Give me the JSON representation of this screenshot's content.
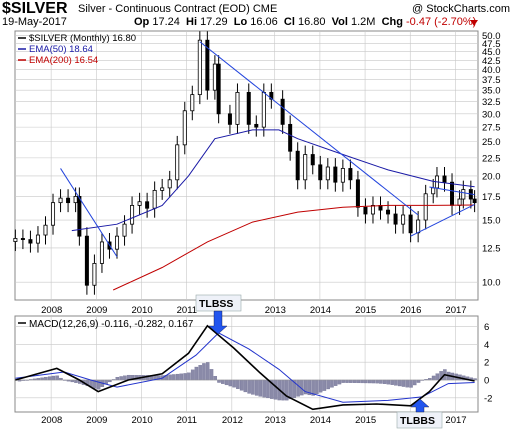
{
  "header": {
    "symbol": "$SILVER",
    "description": "Silver - Continuous Contract (EOD)",
    "exchange": "CME",
    "copyright": "@ StockCharts.com",
    "date": "19-May-2017",
    "open_label": "Op",
    "open": "17.24",
    "high_label": "Hi",
    "high": "17.29",
    "low_label": "Lo",
    "low": "16.06",
    "close_label": "Cl",
    "close": "16.80",
    "volume_label": "Vol",
    "volume": "1.2M",
    "change_label": "Chg",
    "change": "-0.47 (-2.70%)"
  },
  "legend": {
    "price": "$SILVER (Monthly) 16.80",
    "ema50": "EMA(50) 18.64",
    "ema200": "EMA(200) 16.54"
  },
  "macd_label": "MACD(12,26,9) -0.116, -0.282, 0.167",
  "annotations": {
    "top": "TLBSS",
    "bottom": "TLBBS"
  },
  "colors": {
    "candle": "#000000",
    "ema50": "#1a1aa6",
    "ema200": "#c00000",
    "trendline": "#2244dd",
    "macd": "#000000",
    "signal": "#2233cc",
    "histogram": "#8a8aa8",
    "grid": "#c8c8c8",
    "arrow": "#2255ee"
  },
  "chart_data": [
    {
      "type": "candlestick",
      "title": "$SILVER (Monthly)",
      "y_scale": "log",
      "ylim": [
        9,
        51
      ],
      "y_ticks": [
        10.0,
        12.5,
        15.0,
        17.5,
        20.0,
        22.5,
        25.0,
        27.5,
        30.0,
        32.5,
        35.0,
        37.5,
        40.0,
        42.5,
        45.0,
        47.5,
        50.0
      ],
      "x_ticks": [
        "2008",
        "2009",
        "2010",
        "2011",
        "2013",
        "2014",
        "2015",
        "2016",
        "2017"
      ],
      "monthly_close": [
        {
          "date": "2007-03",
          "close": 13.3
        },
        {
          "date": "2007-05",
          "close": 13.2
        },
        {
          "date": "2007-07",
          "close": 12.9
        },
        {
          "date": "2007-09",
          "close": 13.6
        },
        {
          "date": "2007-11",
          "close": 14.5
        },
        {
          "date": "2008-01",
          "close": 16.8
        },
        {
          "date": "2008-03",
          "close": 17.3
        },
        {
          "date": "2008-05",
          "close": 16.8
        },
        {
          "date": "2008-07",
          "close": 17.5
        },
        {
          "date": "2008-08",
          "close": 13.5
        },
        {
          "date": "2008-10",
          "close": 9.8
        },
        {
          "date": "2008-12",
          "close": 11.3
        },
        {
          "date": "2009-02",
          "close": 13.0
        },
        {
          "date": "2009-04",
          "close": 12.4
        },
        {
          "date": "2009-06",
          "close": 13.5
        },
        {
          "date": "2009-08",
          "close": 14.6
        },
        {
          "date": "2009-10",
          "close": 16.5
        },
        {
          "date": "2009-12",
          "close": 16.9
        },
        {
          "date": "2010-02",
          "close": 16.2
        },
        {
          "date": "2010-04",
          "close": 18.2
        },
        {
          "date": "2010-06",
          "close": 18.5
        },
        {
          "date": "2010-08",
          "close": 19.5
        },
        {
          "date": "2010-10",
          "close": 24.5
        },
        {
          "date": "2010-12",
          "close": 30.6
        },
        {
          "date": "2011-02",
          "close": 34.0
        },
        {
          "date": "2011-04",
          "close": 48.5
        },
        {
          "date": "2011-06",
          "close": 35.0
        },
        {
          "date": "2011-08",
          "close": 41.5
        },
        {
          "date": "2011-09",
          "close": 30.0
        },
        {
          "date": "2011-12",
          "close": 28.0
        },
        {
          "date": "2012-02",
          "close": 34.5
        },
        {
          "date": "2012-05",
          "close": 28.0
        },
        {
          "date": "2012-07",
          "close": 27.5
        },
        {
          "date": "2012-09",
          "close": 34.5
        },
        {
          "date": "2012-11",
          "close": 33.0
        },
        {
          "date": "2013-02",
          "close": 28.0
        },
        {
          "date": "2013-04",
          "close": 23.5
        },
        {
          "date": "2013-06",
          "close": 19.5
        },
        {
          "date": "2013-08",
          "close": 23.0
        },
        {
          "date": "2013-10",
          "close": 21.5
        },
        {
          "date": "2013-12",
          "close": 19.5
        },
        {
          "date": "2014-02",
          "close": 21.2
        },
        {
          "date": "2014-04",
          "close": 19.2
        },
        {
          "date": "2014-06",
          "close": 21.0
        },
        {
          "date": "2014-08",
          "close": 19.5
        },
        {
          "date": "2014-10",
          "close": 16.3
        },
        {
          "date": "2014-12",
          "close": 15.6
        },
        {
          "date": "2015-02",
          "close": 16.5
        },
        {
          "date": "2015-04",
          "close": 16.0
        },
        {
          "date": "2015-06",
          "close": 15.6
        },
        {
          "date": "2015-08",
          "close": 14.6
        },
        {
          "date": "2015-10",
          "close": 15.5
        },
        {
          "date": "2015-12",
          "close": 13.8
        },
        {
          "date": "2016-02",
          "close": 15.0
        },
        {
          "date": "2016-04",
          "close": 17.8
        },
        {
          "date": "2016-06",
          "close": 18.5
        },
        {
          "date": "2016-07",
          "close": 20.0
        },
        {
          "date": "2016-09",
          "close": 19.2
        },
        {
          "date": "2016-11",
          "close": 16.5
        },
        {
          "date": "2017-01",
          "close": 17.2
        },
        {
          "date": "2017-02",
          "close": 18.3
        },
        {
          "date": "2017-04",
          "close": 17.2
        },
        {
          "date": "2017-05",
          "close": 16.8
        }
      ],
      "ema50": [
        {
          "date": "2008-06",
          "value": 14.0
        },
        {
          "date": "2009-06",
          "value": 14.6
        },
        {
          "date": "2010-06",
          "value": 16.5
        },
        {
          "date": "2011-01",
          "value": 20.0
        },
        {
          "date": "2011-08",
          "value": 25.5
        },
        {
          "date": "2012-06",
          "value": 27.0
        },
        {
          "date": "2013-01",
          "value": 27.0
        },
        {
          "date": "2013-06",
          "value": 25.5
        },
        {
          "date": "2014-06",
          "value": 23.0
        },
        {
          "date": "2015-06",
          "value": 20.8
        },
        {
          "date": "2016-06",
          "value": 19.3
        },
        {
          "date": "2017-05",
          "value": 18.64
        }
      ],
      "ema200": [
        {
          "date": "2009-05",
          "value": 9.5
        },
        {
          "date": "2010-06",
          "value": 11.0
        },
        {
          "date": "2011-06",
          "value": 13.0
        },
        {
          "date": "2012-06",
          "value": 14.8
        },
        {
          "date": "2013-06",
          "value": 15.8
        },
        {
          "date": "2014-06",
          "value": 16.3
        },
        {
          "date": "2015-06",
          "value": 16.5
        },
        {
          "date": "2016-06",
          "value": 16.5
        },
        {
          "date": "2017-05",
          "value": 16.54
        }
      ],
      "trendlines": [
        {
          "from": {
            "date": "2008-03",
            "value": 21.0
          },
          "to": {
            "date": "2009-06",
            "value": 11.8
          }
        },
        {
          "from": {
            "date": "2011-04",
            "value": 48.0
          },
          "to": {
            "date": "2016-02",
            "value": 15.5
          }
        },
        {
          "from": {
            "date": "2015-12",
            "value": 13.5
          },
          "to": {
            "date": "2017-05",
            "value": 16.6
          }
        },
        {
          "from": {
            "date": "2016-05",
            "value": 18.6
          },
          "to": {
            "date": "2017-05",
            "value": 17.7
          }
        }
      ]
    },
    {
      "type": "line",
      "title": "MACD(12,26,9) -0.116, -0.282, 0.167",
      "ylim": [
        -3.5,
        7
      ],
      "y_ticks": [
        6,
        4,
        2,
        0,
        -2
      ],
      "x_ticks": [
        "2008",
        "2009",
        "2010",
        "2011",
        "2012",
        "2013",
        "2014",
        "2015",
        "2016",
        "2017"
      ],
      "series": [
        {
          "name": "MACD",
          "points": [
            {
              "date": "2007-03",
              "value": 0.0
            },
            {
              "date": "2008-02",
              "value": 1.3
            },
            {
              "date": "2008-08",
              "value": 0.0
            },
            {
              "date": "2009-01",
              "value": -1.3
            },
            {
              "date": "2009-09",
              "value": 0.0
            },
            {
              "date": "2010-06",
              "value": 0.7
            },
            {
              "date": "2011-01",
              "value": 3.0
            },
            {
              "date": "2011-06",
              "value": 6.1
            },
            {
              "date": "2012-01",
              "value": 3.6
            },
            {
              "date": "2012-08",
              "value": 0.8
            },
            {
              "date": "2013-03",
              "value": -1.8
            },
            {
              "date": "2013-10",
              "value": -3.3
            },
            {
              "date": "2014-06",
              "value": -2.8
            },
            {
              "date": "2015-03",
              "value": -2.7
            },
            {
              "date": "2015-12",
              "value": -2.9
            },
            {
              "date": "2016-05",
              "value": -1.3
            },
            {
              "date": "2016-09",
              "value": 0.6
            },
            {
              "date": "2017-05",
              "value": -0.116
            }
          ]
        },
        {
          "name": "Signal",
          "points": [
            {
              "date": "2007-03",
              "value": 0.2
            },
            {
              "date": "2008-04",
              "value": 0.9
            },
            {
              "date": "2008-11",
              "value": 0.0
            },
            {
              "date": "2009-06",
              "value": -0.8
            },
            {
              "date": "2010-06",
              "value": 0.2
            },
            {
              "date": "2011-03",
              "value": 2.8
            },
            {
              "date": "2011-09",
              "value": 5.3
            },
            {
              "date": "2012-05",
              "value": 3.5
            },
            {
              "date": "2013-01",
              "value": 1.2
            },
            {
              "date": "2013-08",
              "value": -1.3
            },
            {
              "date": "2014-06",
              "value": -2.5
            },
            {
              "date": "2015-06",
              "value": -2.3
            },
            {
              "date": "2016-03",
              "value": -1.9
            },
            {
              "date": "2016-10",
              "value": -0.4
            },
            {
              "date": "2017-05",
              "value": -0.282
            }
          ]
        }
      ]
    }
  ]
}
